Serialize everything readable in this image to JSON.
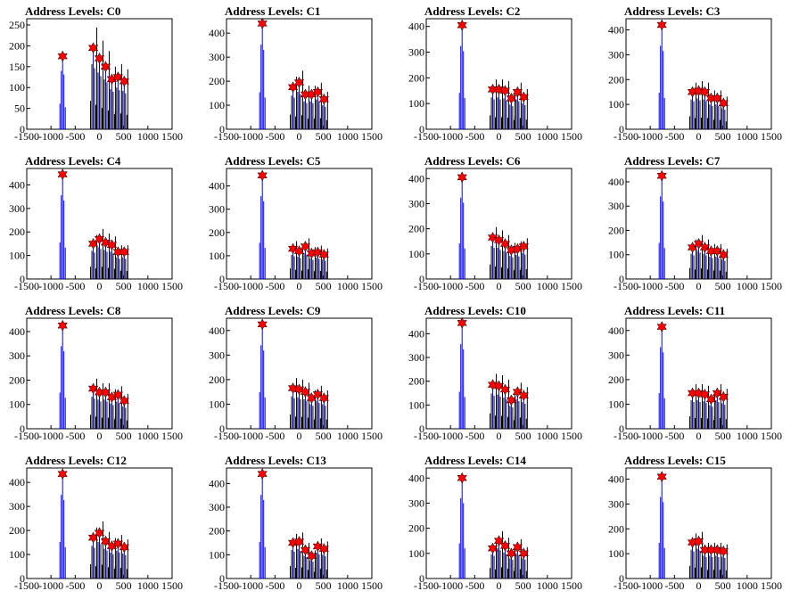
{
  "chart_data": [
    {
      "type": "bar",
      "title": "Address Levels: C0",
      "xlim": [
        -1500,
        1500
      ],
      "ylim": [
        0,
        265
      ],
      "yticks": [
        0,
        50,
        100,
        150,
        200,
        250
      ],
      "xticks": [
        -1500,
        -1000,
        -500,
        0,
        500,
        1000,
        1500
      ],
      "x": [
        -760,
        -128,
        0,
        128,
        256,
        384,
        512,
        640,
        768
      ],
      "y": [
        175,
        195,
        170,
        150,
        120,
        125,
        115,
        0,
        0
      ]
    },
    {
      "type": "bar",
      "title": "Address Levels: C1",
      "xlim": [
        -1500,
        1500
      ],
      "ylim": [
        0,
        460
      ],
      "yticks": [
        0,
        100,
        200,
        300,
        400
      ],
      "xticks": [
        -1500,
        -1000,
        -500,
        0,
        500,
        1000,
        1500
      ],
      "x": [
        -760,
        -128,
        0,
        128,
        256,
        384,
        512,
        640,
        768
      ],
      "y": [
        440,
        175,
        195,
        145,
        145,
        155,
        125,
        0,
        0
      ]
    },
    {
      "type": "bar",
      "title": "Address Levels: C2",
      "xlim": [
        -1500,
        1500
      ],
      "ylim": [
        0,
        430
      ],
      "yticks": [
        0,
        100,
        200,
        300,
        400
      ],
      "xticks": [
        -1500,
        -1000,
        -500,
        0,
        500,
        1000,
        1500
      ],
      "x": [
        -760,
        -128,
        0,
        128,
        256,
        384,
        512,
        640,
        768
      ],
      "y": [
        405,
        155,
        155,
        150,
        120,
        145,
        125,
        0,
        0
      ]
    },
    {
      "type": "bar",
      "title": "Address Levels: C3",
      "xlim": [
        -1500,
        1500
      ],
      "ylim": [
        0,
        445
      ],
      "yticks": [
        0,
        100,
        200,
        300,
        400
      ],
      "xticks": [
        -1500,
        -1000,
        -500,
        0,
        500,
        1000,
        1500
      ],
      "x": [
        -760,
        -128,
        0,
        128,
        256,
        384,
        512,
        640,
        768
      ],
      "y": [
        420,
        150,
        155,
        150,
        125,
        125,
        105,
        0,
        0
      ]
    },
    {
      "type": "bar",
      "title": "Address Levels: C4",
      "xlim": [
        -1500,
        1500
      ],
      "ylim": [
        0,
        470
      ],
      "yticks": [
        0,
        100,
        200,
        300,
        400
      ],
      "xticks": [
        -1500,
        -1000,
        -500,
        0,
        500,
        1000,
        1500
      ],
      "x": [
        -760,
        -128,
        0,
        128,
        256,
        384,
        512,
        640,
        768
      ],
      "y": [
        445,
        150,
        170,
        155,
        145,
        115,
        115,
        0,
        0
      ]
    },
    {
      "type": "bar",
      "title": "Address Levels: C5",
      "xlim": [
        -1500,
        1500
      ],
      "ylim": [
        0,
        475
      ],
      "yticks": [
        0,
        100,
        200,
        300,
        400
      ],
      "xticks": [
        -1500,
        -1000,
        -500,
        0,
        500,
        1000,
        1500
      ],
      "x": [
        -760,
        -128,
        0,
        128,
        256,
        384,
        512,
        640,
        768
      ],
      "y": [
        445,
        130,
        120,
        140,
        110,
        115,
        105,
        0,
        0
      ]
    },
    {
      "type": "bar",
      "title": "Address Levels: C6",
      "xlim": [
        -1500,
        1500
      ],
      "ylim": [
        0,
        440
      ],
      "yticks": [
        0,
        100,
        200,
        300,
        400
      ],
      "xticks": [
        -1500,
        -1000,
        -500,
        0,
        500,
        1000,
        1500
      ],
      "x": [
        -760,
        -128,
        0,
        128,
        256,
        384,
        512,
        640,
        768
      ],
      "y": [
        405,
        165,
        155,
        140,
        115,
        120,
        130,
        0,
        0
      ]
    },
    {
      "type": "bar",
      "title": "Address Levels: C7",
      "xlim": [
        -1500,
        1500
      ],
      "ylim": [
        0,
        455
      ],
      "yticks": [
        0,
        100,
        200,
        300,
        400
      ],
      "xticks": [
        -1500,
        -1000,
        -500,
        0,
        500,
        1000,
        1500
      ],
      "x": [
        -760,
        -128,
        0,
        128,
        256,
        384,
        512,
        640,
        768
      ],
      "y": [
        425,
        130,
        145,
        130,
        115,
        115,
        100,
        0,
        0
      ]
    },
    {
      "type": "bar",
      "title": "Address Levels: C8",
      "xlim": [
        -1500,
        1500
      ],
      "ylim": [
        0,
        455
      ],
      "yticks": [
        0,
        100,
        200,
        300,
        400
      ],
      "xticks": [
        -1500,
        -1000,
        -500,
        0,
        500,
        1000,
        1500
      ],
      "x": [
        -760,
        -128,
        0,
        128,
        256,
        384,
        512,
        640,
        768
      ],
      "y": [
        425,
        165,
        150,
        150,
        130,
        140,
        115,
        0,
        0
      ]
    },
    {
      "type": "bar",
      "title": "Address Levels: C9",
      "xlim": [
        -1500,
        1500
      ],
      "ylim": [
        0,
        450
      ],
      "yticks": [
        0,
        100,
        200,
        300,
        400
      ],
      "xticks": [
        -1500,
        -1000,
        -500,
        0,
        500,
        1000,
        1500
      ],
      "x": [
        -760,
        -128,
        0,
        128,
        256,
        384,
        512,
        640,
        768
      ],
      "y": [
        425,
        165,
        160,
        150,
        125,
        140,
        125,
        0,
        0
      ]
    },
    {
      "type": "bar",
      "title": "Address Levels: C10",
      "xlim": [
        -1500,
        1500
      ],
      "ylim": [
        0,
        465
      ],
      "yticks": [
        0,
        100,
        200,
        300,
        400
      ],
      "xticks": [
        -1500,
        -1000,
        -500,
        0,
        500,
        1000,
        1500
      ],
      "x": [
        -760,
        -128,
        0,
        128,
        256,
        384,
        512,
        640,
        768
      ],
      "y": [
        445,
        185,
        180,
        165,
        120,
        155,
        140,
        0,
        0
      ]
    },
    {
      "type": "bar",
      "title": "Address Levels: C11",
      "xlim": [
        -1500,
        1500
      ],
      "ylim": [
        0,
        450
      ],
      "yticks": [
        0,
        100,
        200,
        300,
        400
      ],
      "xticks": [
        -1500,
        -1000,
        -500,
        0,
        500,
        1000,
        1500
      ],
      "x": [
        -760,
        -128,
        0,
        128,
        256,
        384,
        512,
        640,
        768
      ],
      "y": [
        415,
        145,
        145,
        140,
        120,
        145,
        130,
        0,
        0
      ]
    },
    {
      "type": "bar",
      "title": "Address Levels: C12",
      "xlim": [
        -1500,
        1500
      ],
      "ylim": [
        0,
        460
      ],
      "yticks": [
        0,
        100,
        200,
        300,
        400
      ],
      "xticks": [
        -1500,
        -1000,
        -500,
        0,
        500,
        1000,
        1500
      ],
      "x": [
        -760,
        -128,
        0,
        128,
        256,
        384,
        512,
        640,
        768
      ],
      "y": [
        435,
        170,
        190,
        155,
        135,
        145,
        130,
        0,
        0
      ]
    },
    {
      "type": "bar",
      "title": "Address Levels: C13",
      "xlim": [
        -1500,
        1500
      ],
      "ylim": [
        0,
        465
      ],
      "yticks": [
        0,
        100,
        200,
        300,
        400
      ],
      "xticks": [
        -1500,
        -1000,
        -500,
        0,
        500,
        1000,
        1500
      ],
      "x": [
        -760,
        -128,
        0,
        128,
        256,
        384,
        512,
        640,
        768
      ],
      "y": [
        440,
        150,
        155,
        120,
        95,
        135,
        125,
        0,
        0
      ]
    },
    {
      "type": "bar",
      "title": "Address Levels: C14",
      "xlim": [
        -1500,
        1500
      ],
      "ylim": [
        0,
        440
      ],
      "yticks": [
        0,
        100,
        200,
        300,
        400
      ],
      "xticks": [
        -1500,
        -1000,
        -500,
        0,
        500,
        1000,
        1500
      ],
      "x": [
        -760,
        -128,
        0,
        128,
        256,
        384,
        512,
        640,
        768
      ],
      "y": [
        400,
        120,
        150,
        130,
        100,
        125,
        100,
        0,
        0
      ]
    },
    {
      "type": "bar",
      "title": "Address Levels: C15",
      "xlim": [
        -1500,
        1500
      ],
      "ylim": [
        0,
        445
      ],
      "yticks": [
        0,
        100,
        200,
        300,
        400
      ],
      "xticks": [
        -1500,
        -1000,
        -500,
        0,
        500,
        1000,
        1500
      ],
      "x": [
        -760,
        -128,
        0,
        128,
        256,
        384,
        512,
        640,
        768
      ],
      "y": [
        410,
        145,
        150,
        115,
        115,
        115,
        110,
        0,
        0
      ]
    }
  ],
  "colors": {
    "bar": "#0000ff",
    "secondary_bar": "#000000",
    "marker": "#ff0000",
    "marker_outline": "#000000",
    "axis": "#000000"
  }
}
